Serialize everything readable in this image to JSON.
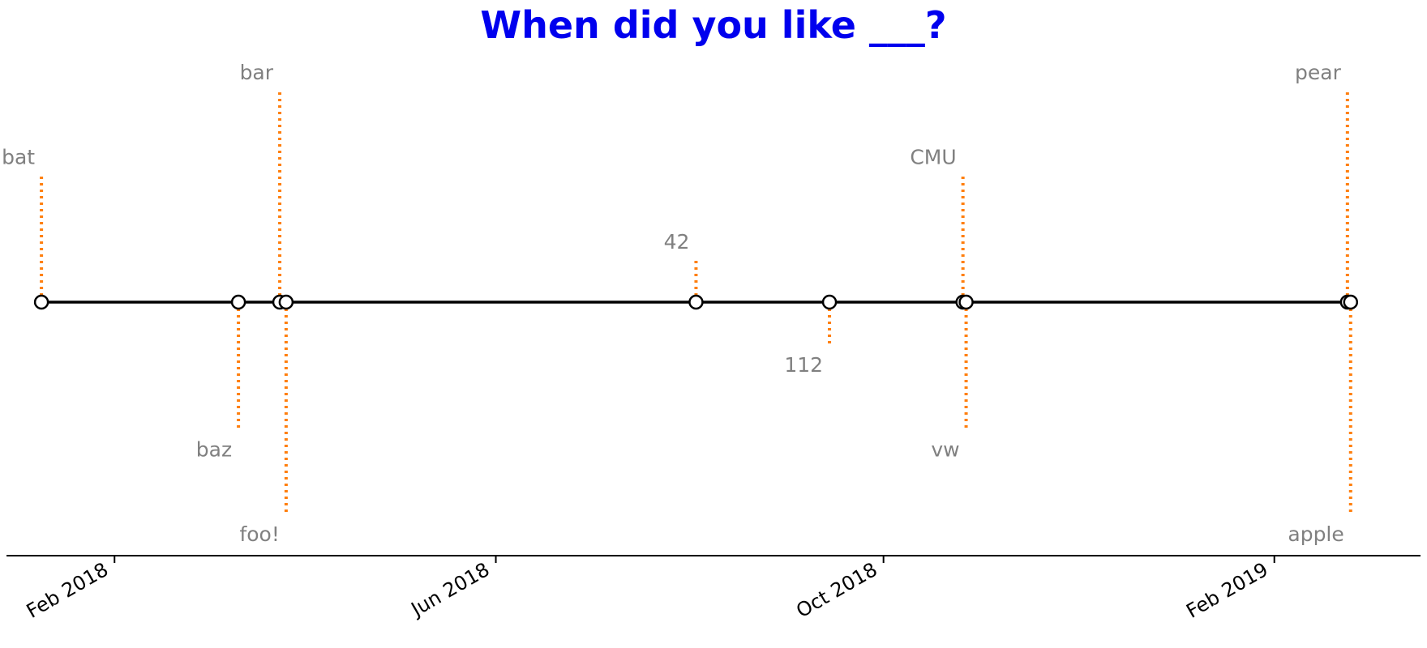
{
  "chart_data": {
    "type": "timeline",
    "title": "When did you like ___?",
    "events": [
      {
        "label": "bat",
        "date": "2018-01-09",
        "stem": 3
      },
      {
        "label": "baz",
        "date": "2018-03-12",
        "stem": -3
      },
      {
        "label": "bar",
        "date": "2018-03-25",
        "stem": 5
      },
      {
        "label": "foo!",
        "date": "2018-03-27",
        "stem": -5
      },
      {
        "label": "42",
        "date": "2018-08-03",
        "stem": 1
      },
      {
        "label": "112",
        "date": "2018-09-14",
        "stem": -1
      },
      {
        "label": "CMU",
        "date": "2018-10-26",
        "stem": 3
      },
      {
        "label": "vw",
        "date": "2018-10-27",
        "stem": -3
      },
      {
        "label": "pear",
        "date": "2019-02-24",
        "stem": 5
      },
      {
        "label": "apple",
        "date": "2019-02-25",
        "stem": -5
      }
    ],
    "xticks": [
      {
        "date": "2018-02-01",
        "label": "Feb 2018"
      },
      {
        "date": "2018-06-01",
        "label": "Jun 2018"
      },
      {
        "date": "2018-10-01",
        "label": "Oct 2018"
      },
      {
        "date": "2019-02-01",
        "label": "Feb 2019"
      }
    ],
    "xlim": [
      "2017-12-29",
      "2019-03-19"
    ],
    "ylim": [
      -6,
      6
    ],
    "y_axis_visible": false,
    "grid": false,
    "colors": {
      "title": "#0000ee",
      "stem": "#ff7f0e",
      "baseline": "#000000",
      "marker_edge": "#000000",
      "marker_fill": "#ffffff",
      "annotation": "#808080",
      "axis": "#000000"
    }
  }
}
